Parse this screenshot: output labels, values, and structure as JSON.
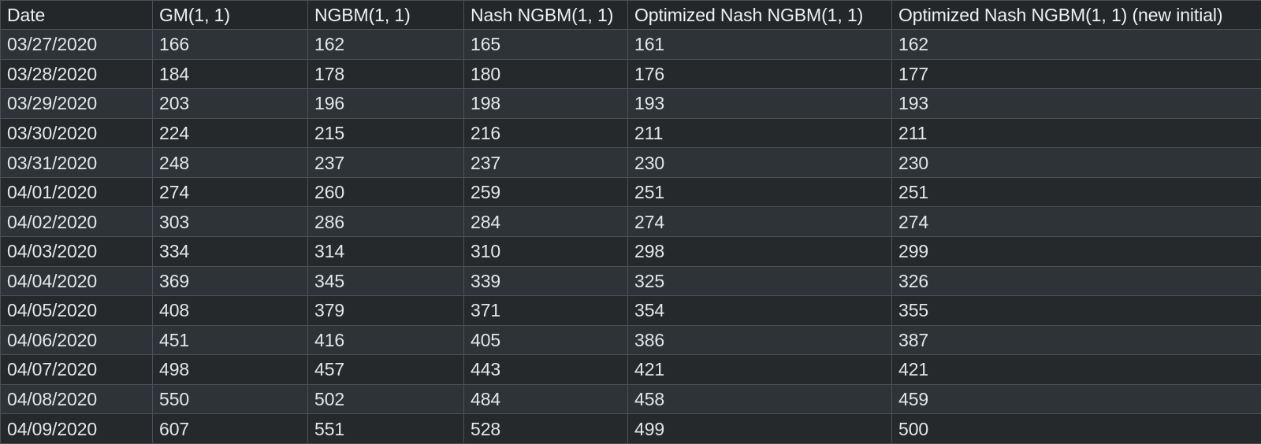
{
  "table": {
    "headers": [
      "Date",
      "GM(1, 1)",
      "NGBM(1, 1)",
      "Nash NGBM(1, 1)",
      "Optimized Nash NGBM(1, 1)",
      "Optimized Nash NGBM(1, 1) (new initial)"
    ],
    "rows": [
      [
        "03/27/2020",
        "166",
        "162",
        "165",
        "161",
        "162"
      ],
      [
        "03/28/2020",
        "184",
        "178",
        "180",
        "176",
        "177"
      ],
      [
        "03/29/2020",
        "203",
        "196",
        "198",
        "193",
        "193"
      ],
      [
        "03/30/2020",
        "224",
        "215",
        "216",
        "211",
        "211"
      ],
      [
        "03/31/2020",
        "248",
        "237",
        "237",
        "230",
        "230"
      ],
      [
        "04/01/2020",
        "274",
        "260",
        "259",
        "251",
        "251"
      ],
      [
        "04/02/2020",
        "303",
        "286",
        "284",
        "274",
        "274"
      ],
      [
        "04/03/2020",
        "334",
        "314",
        "310",
        "298",
        "299"
      ],
      [
        "04/04/2020",
        "369",
        "345",
        "339",
        "325",
        "326"
      ],
      [
        "04/05/2020",
        "408",
        "379",
        "371",
        "354",
        "355"
      ],
      [
        "04/06/2020",
        "451",
        "416",
        "405",
        "386",
        "387"
      ],
      [
        "04/07/2020",
        "498",
        "457",
        "443",
        "421",
        "421"
      ],
      [
        "04/08/2020",
        "550",
        "502",
        "484",
        "458",
        "459"
      ],
      [
        "04/09/2020",
        "607",
        "551",
        "528",
        "499",
        "500"
      ]
    ]
  }
}
